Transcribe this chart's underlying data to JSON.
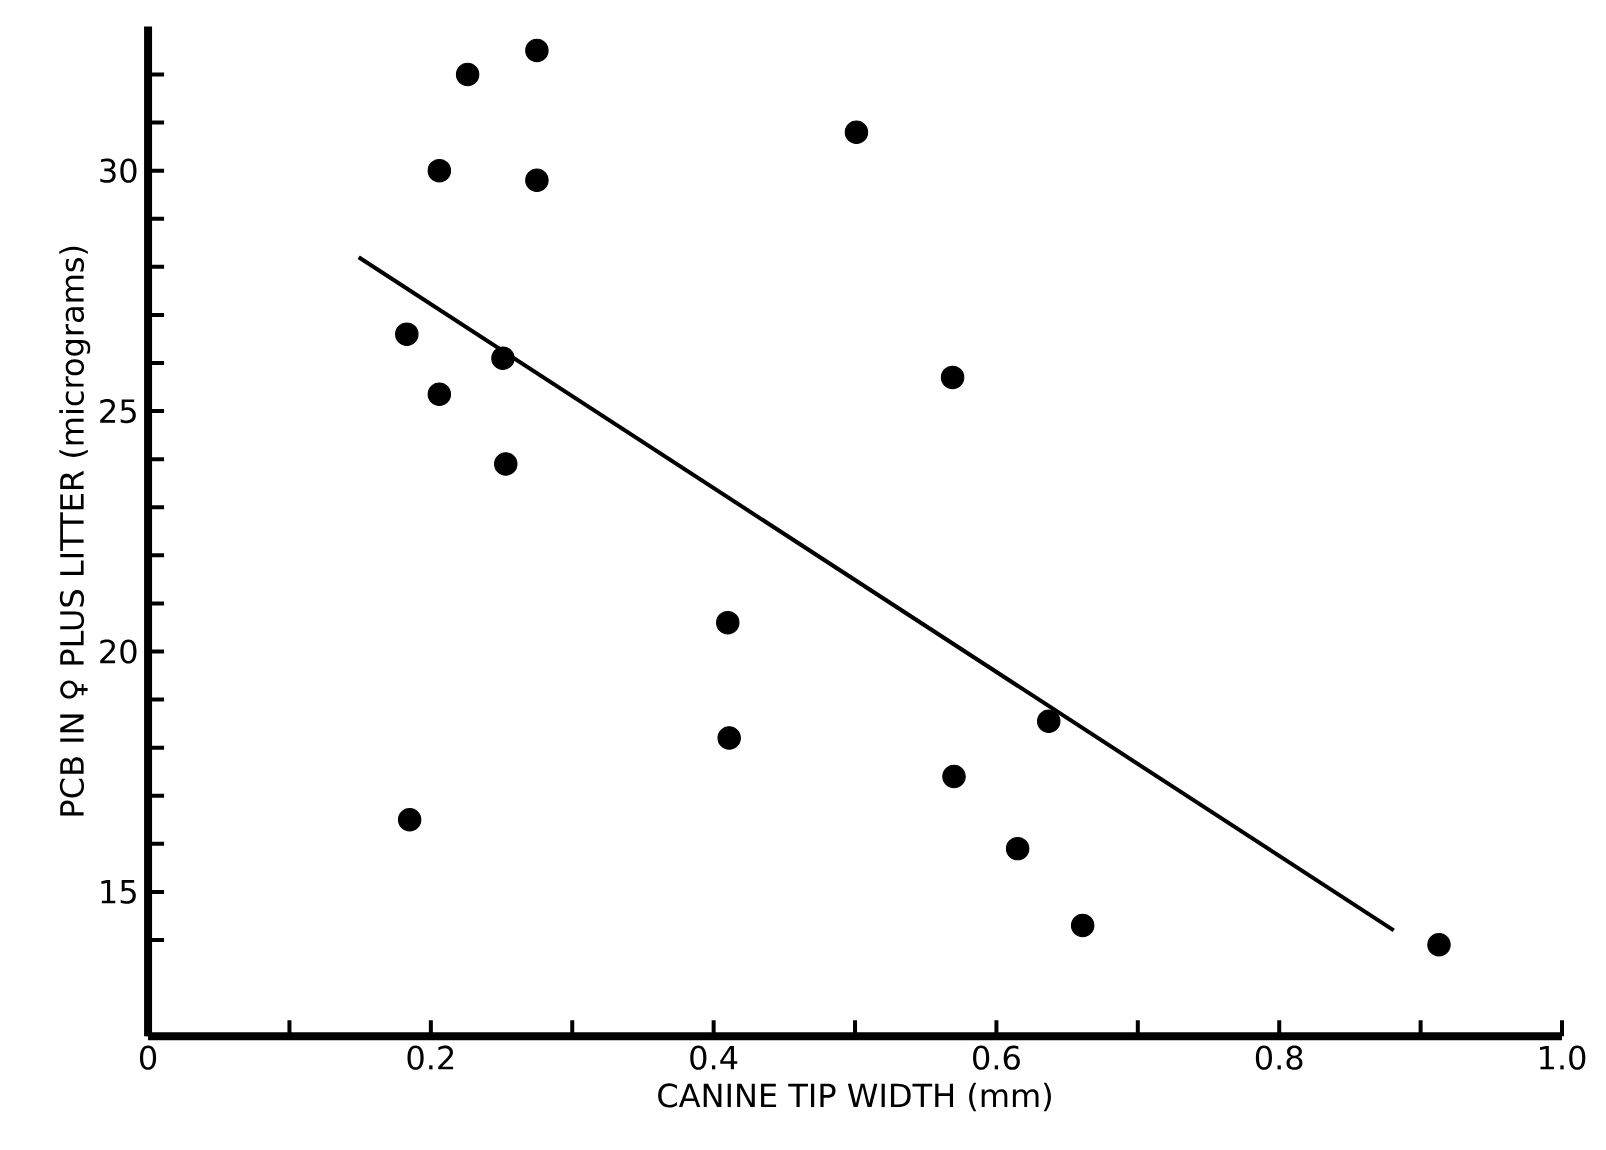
{
  "chart_data": {
    "type": "scatter",
    "xlabel": "CANINE TIP WIDTH (mm)",
    "ylabel": "PCB IN ♀ PLUS LITTER (micrograms)",
    "xlim": [
      0,
      1.0
    ],
    "ylim": [
      12,
      33
    ],
    "xticks": [
      0,
      {
        "value": 0.1,
        "label": null
      },
      0.2,
      {
        "value": 0.3,
        "label": null
      },
      0.4,
      {
        "value": 0.5,
        "label": null
      },
      0.6,
      {
        "value": 0.7,
        "label": null
      },
      0.8,
      {
        "value": 0.9,
        "label": null
      },
      {
        "value": 1,
        "label": "1.0"
      }
    ],
    "yticks": [
      {
        "value": 14,
        "label": null
      },
      15,
      {
        "value": 16,
        "label": null
      },
      {
        "value": 17,
        "label": null
      },
      {
        "value": 18,
        "label": null
      },
      {
        "value": 19,
        "label": null
      },
      20,
      {
        "value": 21,
        "label": null
      },
      {
        "value": 22,
        "label": null
      },
      {
        "value": 23,
        "label": null
      },
      {
        "value": 24,
        "label": null
      },
      25,
      {
        "value": 26,
        "label": null
      },
      {
        "value": 27,
        "label": null
      },
      {
        "value": 28,
        "label": null
      },
      {
        "value": 29,
        "label": null
      },
      30,
      {
        "value": 31,
        "label": null
      },
      {
        "value": 32,
        "label": null
      }
    ],
    "grid": false,
    "series": [
      {
        "color": "#000000",
        "x": [
          0.226,
          0.275,
          0.206,
          0.275,
          0.183,
          0.251,
          0.206,
          0.253,
          0.185,
          0.41,
          0.411,
          0.501,
          0.569,
          0.637,
          0.57,
          0.615,
          0.661,
          0.913
        ],
        "values": [
          32.0,
          32.5,
          30.0,
          29.8,
          26.6,
          26.1,
          25.35,
          23.9,
          16.5,
          20.6,
          18.2,
          30.8,
          25.7,
          18.55,
          17.4,
          15.9,
          14.3,
          13.9
        ]
      },
      {
        "type": "line",
        "color": "#000000",
        "x": [
          0.149,
          0.881
        ],
        "values": [
          28.2,
          14.2
        ]
      }
    ]
  }
}
